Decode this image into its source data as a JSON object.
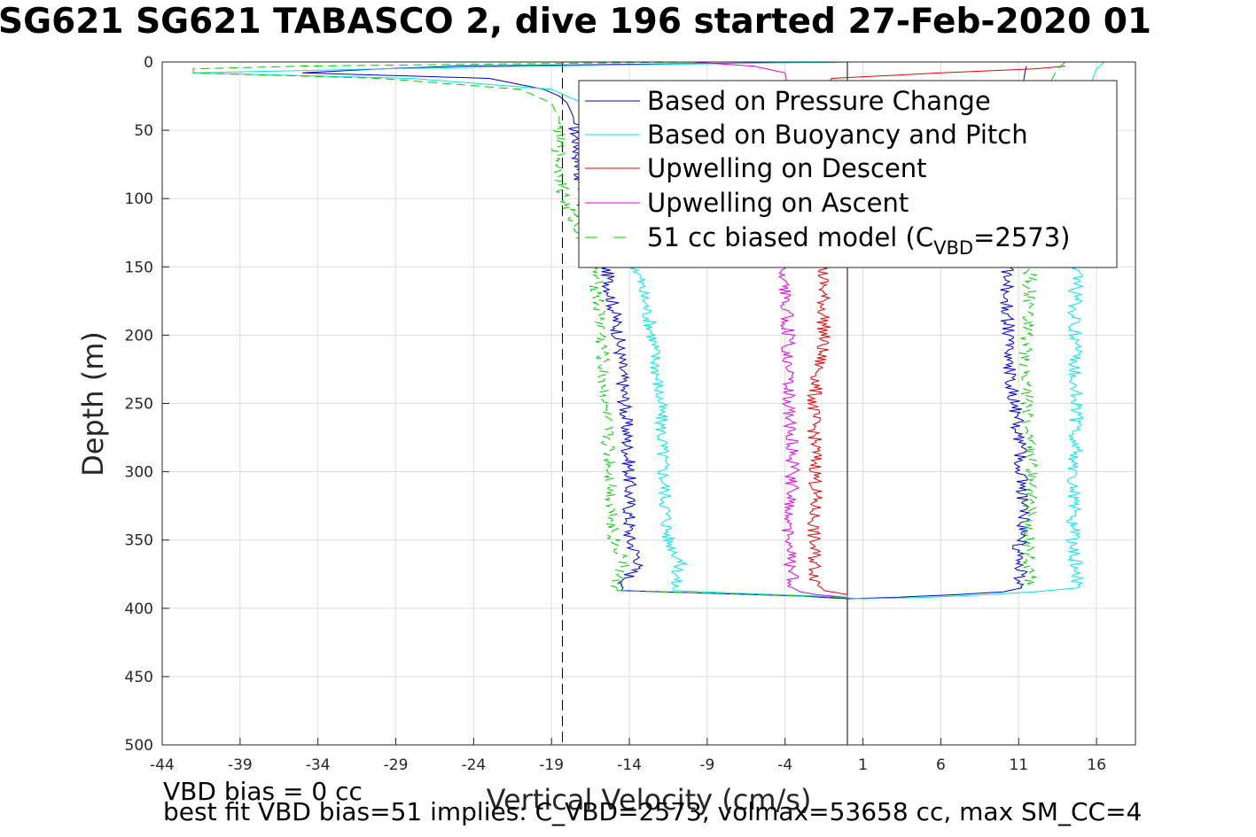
{
  "chart_data": {
    "type": "line",
    "title": "SG621 SG621 TABASCO 2, dive 196 started 27-Feb-2020 01",
    "xlabel": "Vertical Velocity (cm/s)",
    "ylabel": "Depth (m)",
    "xlim": [
      -44,
      18.5
    ],
    "ylim": [
      0,
      500
    ],
    "y_reversed": true,
    "grid": true,
    "legend_position": "top-right",
    "xticks": [
      "-44",
      "-39",
      "-34",
      "-29",
      "-24",
      "-19",
      "-14",
      "-9",
      "-4",
      "1",
      "6",
      "11",
      "16"
    ],
    "yticks": [
      "0",
      "50",
      "100",
      "150",
      "200",
      "250",
      "300",
      "350",
      "400",
      "450",
      "500"
    ],
    "reference_lines": {
      "vertical_dashed_x": -18.3,
      "vertical_solid_x": 0
    },
    "series": [
      {
        "name": "Based on Pressure Change",
        "color": "#0000cc",
        "style": "solid",
        "descent": {
          "depth": [
            0,
            3,
            5,
            8,
            12,
            20,
            25,
            30,
            35,
            40,
            50,
            60,
            80,
            100,
            120,
            150,
            200,
            250,
            300,
            350,
            365,
            380,
            387
          ],
          "velocity": [
            0,
            -25,
            -30,
            -35,
            -23,
            -19.5,
            -18.5,
            -18,
            -17.8,
            -17.6,
            -17.5,
            -17.3,
            -17.2,
            -17,
            -16.8,
            -15.5,
            -14.7,
            -14.3,
            -14,
            -14,
            -13.3,
            -14.2,
            -14.5
          ]
        },
        "turn": {
          "depth": [
            387,
            389,
            391,
            393,
            392,
            390,
            388,
            385
          ],
          "velocity": [
            -14.5,
            -9,
            -3,
            0,
            3,
            7,
            10,
            11.2
          ]
        },
        "ascent": {
          "depth": [
            385,
            360,
            330,
            300,
            270,
            230,
            200,
            180,
            150,
            120,
            80,
            50,
            30,
            15,
            8,
            3
          ],
          "velocity": [
            11.2,
            11,
            11.3,
            11.2,
            11,
            10.5,
            10.3,
            10.2,
            10.3,
            10.5,
            10.8,
            11,
            11.2,
            11.3,
            11.4,
            11.5
          ]
        }
      },
      {
        "name": "Based on Buoyancy and Pitch",
        "color": "#00e5e5",
        "style": "solid",
        "descent": {
          "depth": [
            0,
            3,
            5,
            8,
            12,
            20,
            30,
            35,
            40,
            60,
            100,
            150,
            200,
            250,
            300,
            350,
            365,
            380,
            387
          ],
          "velocity": [
            0,
            -20,
            -30,
            -42,
            -28,
            -19,
            -17,
            -16,
            -15.5,
            -15.5,
            -15,
            -13.5,
            -12.5,
            -12,
            -11.8,
            -11.5,
            -10.7,
            -11,
            -11.2
          ]
        },
        "turn": {
          "depth": [
            387,
            389,
            391,
            393,
            392,
            390,
            388,
            385
          ],
          "velocity": [
            -11.2,
            -7,
            -2,
            1,
            5,
            9,
            12,
            14.8
          ]
        },
        "ascent": {
          "depth": [
            385,
            350,
            300,
            250,
            200,
            150,
            100,
            50,
            20,
            5,
            0
          ],
          "velocity": [
            14.8,
            14.5,
            14.6,
            14.7,
            14.6,
            14.7,
            14.9,
            15.1,
            15.5,
            16,
            16.5
          ]
        }
      },
      {
        "name": "Upwelling on Descent",
        "color": "#e60000",
        "style": "solid",
        "descent": {
          "depth": [
            3,
            5,
            8,
            12,
            20,
            40,
            100,
            150,
            200,
            250,
            300,
            350,
            380,
            387
          ],
          "velocity": [
            14,
            12,
            6,
            -1,
            -1.6,
            -1.8,
            -1.7,
            -1.6,
            -1.5,
            -2.2,
            -2.0,
            -2.2,
            -2.0,
            -1.5
          ]
        },
        "turn": {
          "depth": [
            387,
            390,
            392
          ],
          "velocity": [
            -1.5,
            0,
            0
          ]
        },
        "ascent": {
          "depth": [],
          "velocity": []
        }
      },
      {
        "name": "Upwelling on Ascent",
        "color": "#e600e6",
        "style": "solid",
        "descent": {
          "depth": [],
          "velocity": []
        },
        "turn": {
          "depth": [
            392,
            390,
            388,
            385
          ],
          "velocity": [
            0,
            -2,
            -3,
            -3.5
          ]
        },
        "ascent": {
          "depth": [
            385,
            350,
            300,
            250,
            200,
            150,
            100,
            50,
            20,
            8,
            3,
            0
          ],
          "velocity": [
            -3.5,
            -3.8,
            -3.5,
            -3.8,
            -3.8,
            -4.2,
            -4.0,
            -3.8,
            -3.8,
            -4.0,
            -6,
            -10
          ]
        }
      },
      {
        "name": "51 cc biased model (C",
        "name_subscript": "VBD",
        "name_suffix": "=2573)",
        "color": "#00cc00",
        "style": "dashed",
        "descent": {
          "depth": [
            0,
            3,
            5,
            8,
            12,
            20,
            30,
            35,
            40,
            60,
            100,
            150,
            200,
            250,
            300,
            350,
            365,
            380,
            387
          ],
          "velocity": [
            -10,
            -35,
            -42,
            -42,
            -30,
            -21,
            -19,
            -18.8,
            -18.5,
            -18.6,
            -18.2,
            -16.2,
            -15.8,
            -15.6,
            -15.2,
            -15,
            -14.3,
            -14.8,
            -14.8
          ]
        },
        "turn": {
          "depth": [
            387,
            389,
            391,
            392
          ],
          "velocity": [
            -14.8,
            -9,
            -3,
            0
          ]
        },
        "ascent": {
          "depth": [
            383,
            350,
            300,
            250,
            200,
            150,
            100,
            50,
            20,
            5,
            0
          ],
          "velocity": [
            11.8,
            11.6,
            11.8,
            11.5,
            11.5,
            11.8,
            12,
            12.3,
            12.8,
            13.5,
            14
          ]
        }
      }
    ]
  },
  "notes": {
    "line1": "VBD bias = 0 cc",
    "line2": "best fit VBD bias=51 implies: C_VBD=2573, volmax=53658 cc, max SM_CC=4"
  }
}
